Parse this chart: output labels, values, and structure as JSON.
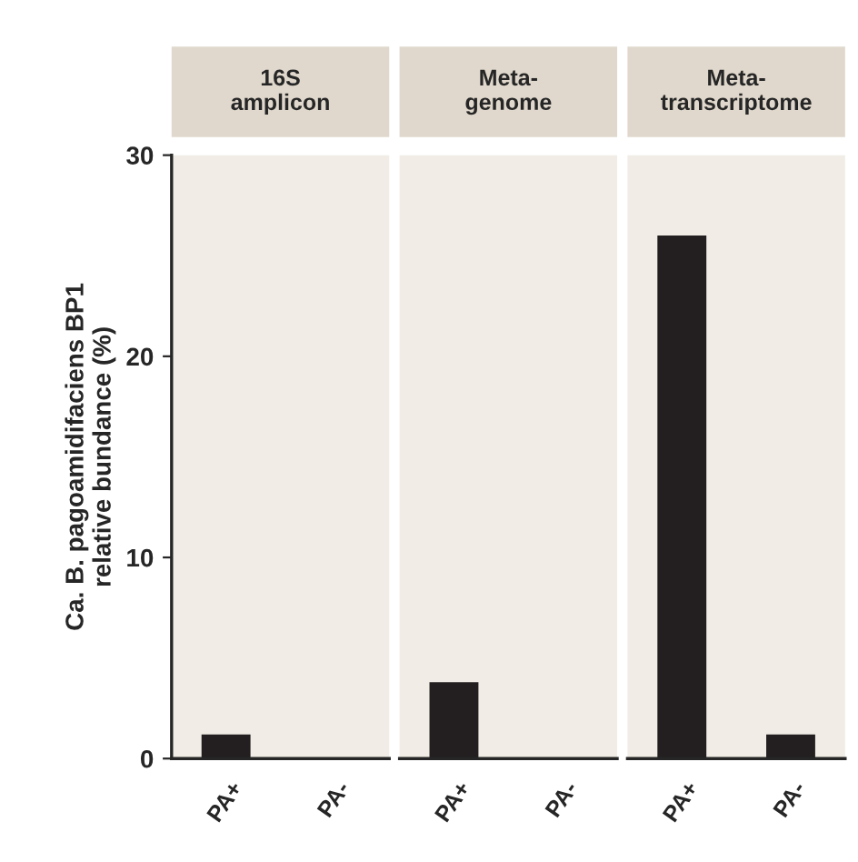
{
  "chart_data": [
    {
      "type": "bar",
      "title": "16S\namplicon",
      "ylabel": "Ca. B. pagoamidifaciens BP1\nrelative bundance (%)",
      "categories": [
        "PA+",
        "PA-"
      ],
      "values": [
        1.2,
        0
      ],
      "color": "#231f20",
      "ylim": [
        0,
        30
      ],
      "yticks": [
        0,
        10,
        20,
        30
      ],
      "grid": false,
      "legend": false
    },
    {
      "type": "bar",
      "title": "Meta-\ngenome",
      "categories": [
        "PA+",
        "PA-"
      ],
      "values": [
        3.8,
        0
      ],
      "color": "#231f20",
      "ylim": [
        0,
        30
      ],
      "yticks": [
        0,
        10,
        20,
        30
      ],
      "tick_labels": "x",
      "grid": false,
      "legend": false
    },
    {
      "type": "bar",
      "title": "Meta-\ntranscriptome",
      "categories": [
        "PA+",
        "PA-"
      ],
      "values": [
        26,
        1.2
      ],
      "color": "#231f20",
      "ylim": [
        0,
        30
      ],
      "yticks": [
        0,
        10,
        20,
        30
      ],
      "tick_labels": "x",
      "grid": false,
      "legend": false
    }
  ]
}
